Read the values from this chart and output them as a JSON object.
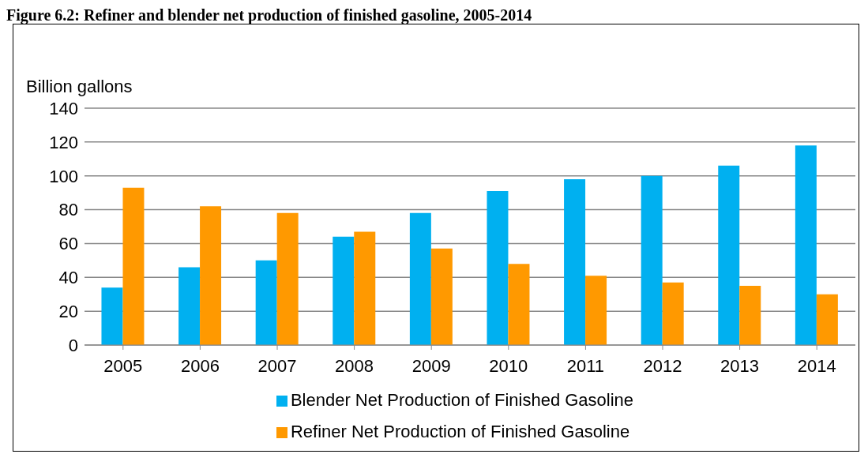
{
  "chart_data": {
    "type": "bar",
    "title": "Figure 6.2:  Refiner and blender net production of finished gasoline, 2005-2014",
    "ylabel": "Billion gallons",
    "categories": [
      "2005",
      "2006",
      "2007",
      "2008",
      "2009",
      "2010",
      "2011",
      "2012",
      "2013",
      "2014"
    ],
    "series": [
      {
        "name": "Blender Net Production of Finished Gasoline",
        "color": "#00b0f0",
        "values": [
          34,
          46,
          50,
          64,
          78,
          91,
          98,
          100,
          106,
          118
        ]
      },
      {
        "name": "Refiner Net Production of Finished Gasoline",
        "color": "#ff9900",
        "values": [
          93,
          82,
          78,
          67,
          57,
          48,
          41,
          37,
          35,
          30
        ]
      }
    ],
    "ylim": [
      0,
      140
    ],
    "yticks": [
      0,
      20,
      40,
      60,
      80,
      100,
      120,
      140
    ],
    "grid": "y",
    "legend": "bottom"
  }
}
